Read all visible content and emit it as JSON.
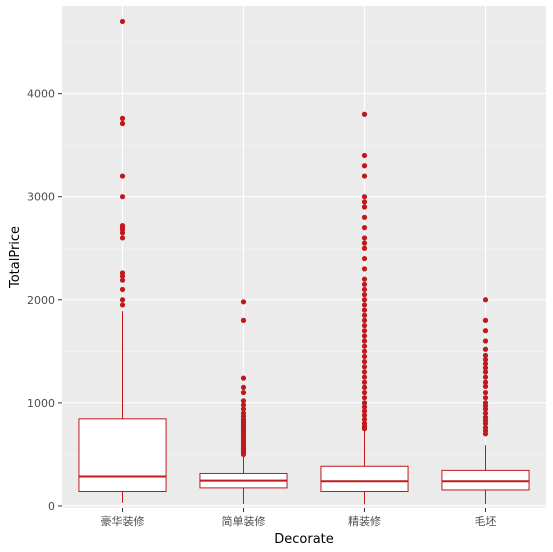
{
  "chart_data": {
    "type": "box",
    "xlabel": "Decorate",
    "ylabel": "TotalPrice",
    "ylim": [
      -20,
      4850
    ],
    "yticks": [
      0,
      1000,
      2000,
      3000,
      4000
    ],
    "grid": true,
    "categories": [
      "豪华装修",
      "简单装修",
      "精装修",
      "毛坯"
    ],
    "boxes": [
      {
        "category": "豪华装修",
        "min": 30,
        "q1": 140,
        "median": 285,
        "q3": 845,
        "max": 1890,
        "outliers": [
          4700,
          3760,
          3710,
          3200,
          3000,
          2720,
          2700,
          2680,
          2650,
          2600,
          2260,
          2230,
          2190,
          2100,
          2000,
          1950
        ]
      },
      {
        "category": "简单装修",
        "min": 20,
        "q1": 175,
        "median": 245,
        "q3": 315,
        "max": 480,
        "outliers": [
          1980,
          1800,
          1240,
          1150,
          1100,
          1020,
          980,
          940,
          900,
          870,
          840,
          820,
          800,
          780,
          760,
          740,
          720,
          700,
          680,
          660,
          640,
          620,
          600,
          580,
          560,
          540,
          520,
          500
        ]
      },
      {
        "category": "精装修",
        "min": 15,
        "q1": 140,
        "median": 240,
        "q3": 385,
        "max": 730,
        "outliers": [
          3800,
          3400,
          3300,
          3200,
          3000,
          2950,
          2900,
          2800,
          2700,
          2600,
          2550,
          2500,
          2400,
          2300,
          2200,
          2150,
          2100,
          2050,
          2000,
          1950,
          1900,
          1850,
          1800,
          1750,
          1700,
          1650,
          1600,
          1550,
          1500,
          1450,
          1400,
          1350,
          1300,
          1250,
          1200,
          1150,
          1100,
          1050,
          1000,
          960,
          920,
          880,
          840,
          800,
          770,
          750
        ]
      },
      {
        "category": "毛坯",
        "min": 20,
        "q1": 155,
        "median": 240,
        "q3": 345,
        "max": 590,
        "outliers": [
          2000,
          1800,
          1700,
          1600,
          1520,
          1460,
          1420,
          1380,
          1340,
          1300,
          1250,
          1200,
          1160,
          1100,
          1050,
          1000,
          970,
          940,
          900,
          860,
          830,
          800,
          760,
          730,
          700
        ]
      }
    ],
    "colors": {
      "box": "#c0181c",
      "panel": "#ebebeb",
      "grid_major": "#ffffff",
      "grid_minor": "#f5f5f5"
    }
  }
}
